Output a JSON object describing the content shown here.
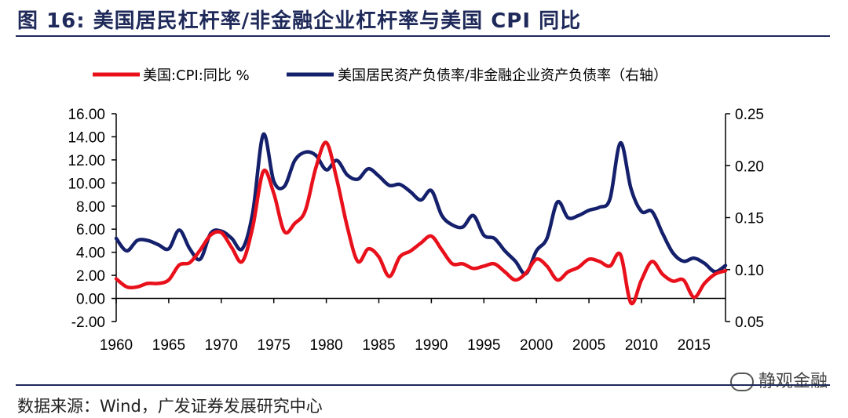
{
  "title": "图 16:  美国居民杠杆率/非金融企业杠杆率与美国 CPI 同比",
  "source": "数据来源：Wind，广发证券发展研究中心",
  "watermark": "静观金融",
  "colors": {
    "cpi": "#e8101a",
    "debt": "#14206b",
    "accent": "#1f2a5a"
  },
  "chart_data": {
    "type": "line",
    "legend_position": "top",
    "xlim": [
      1960,
      2018
    ],
    "x_ticks": [
      "1960",
      "1965",
      "1970",
      "1975",
      "1980",
      "1985",
      "1990",
      "1995",
      "2000",
      "2005",
      "2010",
      "2015"
    ],
    "y_left": {
      "lim": [
        -2,
        16
      ],
      "ticks": [
        "16.00",
        "14.00",
        "12.00",
        "10.00",
        "8.00",
        "6.00",
        "4.00",
        "2.00",
        "0.00",
        "-2.00"
      ]
    },
    "y_right": {
      "lim": [
        0.05,
        0.25
      ],
      "ticks": [
        "0.25",
        "0.20",
        "0.15",
        "0.10",
        "0.05"
      ]
    },
    "series": [
      {
        "name": "美国:CPI:同比 %",
        "axis": "left",
        "x": [
          1960,
          1961,
          1962,
          1963,
          1964,
          1965,
          1966,
          1967,
          1968,
          1969,
          1970,
          1971,
          1972,
          1973,
          1974,
          1975,
          1976,
          1977,
          1978,
          1979,
          1980,
          1981,
          1982,
          1983,
          1984,
          1985,
          1986,
          1987,
          1988,
          1989,
          1990,
          1991,
          1992,
          1993,
          1994,
          1995,
          1996,
          1997,
          1998,
          1999,
          2000,
          2001,
          2002,
          2003,
          2004,
          2005,
          2006,
          2007,
          2008,
          2009,
          2010,
          2011,
          2012,
          2013,
          2014,
          2015,
          2016,
          2017,
          2018
        ],
        "values": [
          1.7,
          1.0,
          1.0,
          1.3,
          1.3,
          1.6,
          2.9,
          3.1,
          4.2,
          5.5,
          5.7,
          4.4,
          3.2,
          6.2,
          11.0,
          9.1,
          5.8,
          6.5,
          7.6,
          11.3,
          13.5,
          10.3,
          6.2,
          3.2,
          4.3,
          3.6,
          1.9,
          3.6,
          4.1,
          4.8,
          5.4,
          4.2,
          3.0,
          3.0,
          2.6,
          2.8,
          3.0,
          2.3,
          1.6,
          2.2,
          3.4,
          2.8,
          1.6,
          2.3,
          2.7,
          3.4,
          3.2,
          2.8,
          3.8,
          -0.4,
          1.6,
          3.2,
          2.1,
          1.5,
          1.6,
          0.1,
          1.3,
          2.1,
          2.4
        ]
      },
      {
        "name": "美国居民资产负债率/非金融企业资产负债率（右轴）",
        "axis": "right",
        "x": [
          1960,
          1961,
          1962,
          1963,
          1964,
          1965,
          1966,
          1967,
          1968,
          1969,
          1970,
          1971,
          1972,
          1973,
          1974,
          1975,
          1976,
          1977,
          1978,
          1979,
          1980,
          1981,
          1982,
          1983,
          1984,
          1985,
          1986,
          1987,
          1988,
          1989,
          1990,
          1991,
          1992,
          1993,
          1994,
          1995,
          1996,
          1997,
          1998,
          1999,
          2000,
          2001,
          2002,
          2003,
          2004,
          2005,
          2006,
          2007,
          2008,
          2009,
          2010,
          2011,
          2012,
          2013,
          2014,
          2015,
          2016,
          2017,
          2018
        ],
        "values": [
          0.13,
          0.118,
          0.128,
          0.128,
          0.124,
          0.12,
          0.138,
          0.12,
          0.11,
          0.135,
          0.137,
          0.13,
          0.12,
          0.155,
          0.23,
          0.185,
          0.18,
          0.205,
          0.213,
          0.21,
          0.196,
          0.205,
          0.191,
          0.187,
          0.197,
          0.19,
          0.181,
          0.182,
          0.175,
          0.167,
          0.176,
          0.152,
          0.143,
          0.141,
          0.152,
          0.133,
          0.13,
          0.118,
          0.108,
          0.096,
          0.118,
          0.13,
          0.165,
          0.15,
          0.152,
          0.157,
          0.16,
          0.168,
          0.222,
          0.178,
          0.156,
          0.156,
          0.135,
          0.116,
          0.108,
          0.111,
          0.106,
          0.098,
          0.104
        ]
      }
    ]
  }
}
